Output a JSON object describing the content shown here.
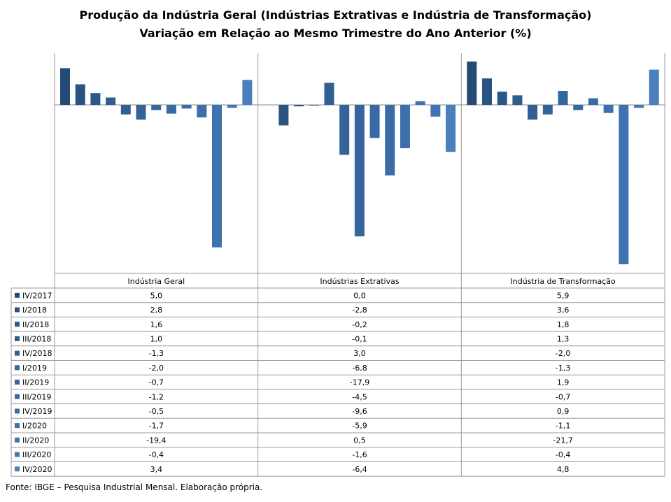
{
  "title": "Produção da Indústria Geral (Indústrias Extrativas e Indústria de Transformação)",
  "subtitle": "Variação em Relação ao Mesmo Trimestre do Ano Anterior (%)",
  "source": "Fonte: IBGE – Pesquisa Industrial Mensal. Elaboração própria.",
  "chart_data": {
    "type": "bar",
    "title": "Produção da Indústria Geral (Indústrias Extrativas e Indústria de Transformação)",
    "subtitle": "Variação em Relação ao Mesmo Trimestre do Ano Anterior (%)",
    "categories": [
      "Indústria Geral",
      "Indústrias Extrativas",
      "Indústria de Transformação"
    ],
    "grid": false,
    "legend_position": "data table below chart",
    "series": [
      {
        "name": "IV/2017",
        "values": [
          "5,0",
          "0,0",
          "5,9"
        ],
        "numbers": [
          5.0,
          0.0,
          5.9
        ]
      },
      {
        "name": "I/2018",
        "values": [
          "2,8",
          "-2,8",
          "3,6"
        ],
        "numbers": [
          2.8,
          -2.8,
          3.6
        ]
      },
      {
        "name": "II/2018",
        "values": [
          "1,6",
          "-0,2",
          "1,8"
        ],
        "numbers": [
          1.6,
          -0.2,
          1.8
        ]
      },
      {
        "name": "III/2018",
        "values": [
          "1,0",
          "-0,1",
          "1,3"
        ],
        "numbers": [
          1.0,
          -0.1,
          1.3
        ]
      },
      {
        "name": "IV/2018",
        "values": [
          "-1,3",
          "3,0",
          "-2,0"
        ],
        "numbers": [
          -1.3,
          3.0,
          -2.0
        ]
      },
      {
        "name": "I/2019",
        "values": [
          "-2,0",
          "-6,8",
          "-1,3"
        ],
        "numbers": [
          -2.0,
          -6.8,
          -1.3
        ]
      },
      {
        "name": "II/2019",
        "values": [
          "-0,7",
          "-17,9",
          "1,9"
        ],
        "numbers": [
          -0.7,
          -17.9,
          1.9
        ]
      },
      {
        "name": "III/2019",
        "values": [
          "-1,2",
          "-4,5",
          "-0,7"
        ],
        "numbers": [
          -1.2,
          -4.5,
          -0.7
        ]
      },
      {
        "name": "IV/2019",
        "values": [
          "-0,5",
          "-9,6",
          "0,9"
        ],
        "numbers": [
          -0.5,
          -9.6,
          0.9
        ]
      },
      {
        "name": "I/2020",
        "values": [
          "-1,7",
          "-5,9",
          "-1,1"
        ],
        "numbers": [
          -1.7,
          -5.9,
          -1.1
        ]
      },
      {
        "name": "II/2020",
        "values": [
          "-19,4",
          "0,5",
          "-21,7"
        ],
        "numbers": [
          -19.4,
          0.5,
          -21.7
        ]
      },
      {
        "name": "III/2020",
        "values": [
          "-0,4",
          "-1,6",
          "-0,4"
        ],
        "numbers": [
          -0.4,
          -1.6,
          -0.4
        ]
      },
      {
        "name": "IV/2020",
        "values": [
          "3,4",
          "-6,4",
          "4,8"
        ],
        "numbers": [
          3.4,
          -6.4,
          4.8
        ]
      }
    ],
    "colors": [
      "#264a78",
      "#2a5283",
      "#2c5789",
      "#2f5c8e",
      "#315f94",
      "#336499",
      "#3566a0",
      "#3769a4",
      "#3a6ca8",
      "#3c6fac",
      "#3e72b1",
      "#4175b5",
      "#4a7ebd"
    ]
  }
}
